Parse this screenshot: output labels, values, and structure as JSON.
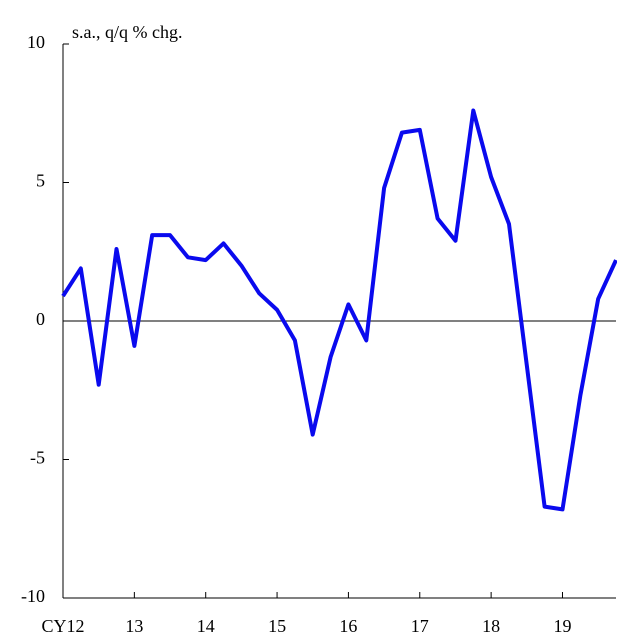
{
  "chart_data": {
    "type": "line",
    "y_label": "s.a., q/q % chg.",
    "categories": [
      "CY12",
      null,
      null,
      null,
      "13",
      null,
      null,
      null,
      "14",
      null,
      null,
      null,
      "15",
      null,
      null,
      null,
      "16",
      null,
      null,
      null,
      "17",
      null,
      null,
      null,
      "18",
      null,
      null,
      null,
      "19",
      null,
      null,
      null
    ],
    "values": [
      0.9,
      1.9,
      -2.3,
      2.6,
      -0.9,
      3.1,
      3.1,
      2.3,
      2.2,
      2.8,
      2.0,
      1.0,
      0.4,
      -0.7,
      -4.1,
      -1.3,
      0.6,
      -0.7,
      4.8,
      6.8,
      6.9,
      3.7,
      2.9,
      7.6,
      5.2,
      3.5,
      -1.6,
      -6.7,
      -6.8,
      -2.7,
      0.8,
      2.2
    ],
    "color": "#0a0aee",
    "ylim": [
      -10,
      10
    ],
    "yticks": [
      -10,
      -5,
      0,
      5,
      10
    ]
  }
}
